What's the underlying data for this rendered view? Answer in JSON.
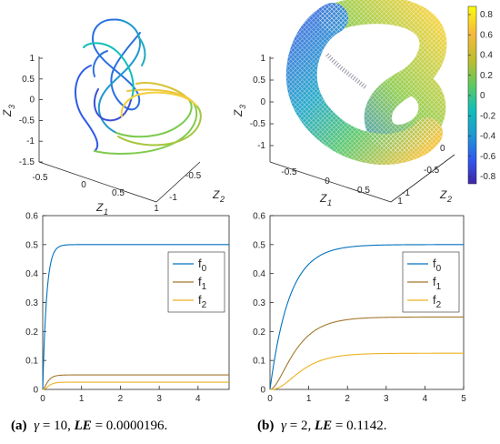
{
  "colors": {
    "f0": "#0072BD",
    "f1": "#A2782E",
    "f2": "#EDB120",
    "axis": "#262626",
    "colormap": [
      "#3E26A8",
      "#2F5AF0",
      "#1E9BD0",
      "#12BEB9",
      "#5CC963",
      "#BFBC2E",
      "#F8BA3D",
      "#F9FB0E"
    ]
  },
  "panels_3d": [
    {
      "id": "a-top",
      "xlabel": "Z",
      "xsub": "1",
      "ylabel": "Z",
      "ysub": "2",
      "zlabel": "Z",
      "zsub": "3",
      "zticks": [
        "1",
        "0.5",
        "0",
        "-0.5",
        "-1",
        "-1.5"
      ],
      "xticks": [
        "-0.5",
        "0",
        "0.5",
        "1"
      ],
      "yticks": [
        "-0.5",
        "-1"
      ]
    },
    {
      "id": "b-top",
      "xlabel": "Z",
      "xsub": "1",
      "ylabel": "Z",
      "ysub": "2",
      "zlabel": "Z",
      "zsub": "3",
      "zticks": [
        "1",
        "0.5",
        "0",
        "-0.5",
        "-1"
      ],
      "xticks": [
        "-0.5",
        "0",
        "0.5",
        "1"
      ],
      "yticks": [
        "0",
        "-0.5",
        "-1"
      ],
      "colorbar_ticks": [
        "0.8",
        "0.6",
        "0.4",
        "0.2",
        "0",
        "-0.2",
        "-0.4",
        "-0.6",
        "-0.8"
      ]
    }
  ],
  "chart_data": [
    {
      "type": "line",
      "id": "a-bottom",
      "xlim": [
        0,
        4.8
      ],
      "ylim": [
        0,
        0.6
      ],
      "xticks": [
        "0",
        "1",
        "2",
        "3",
        "4"
      ],
      "yticks": [
        "0",
        "0.1",
        "0.2",
        "0.3",
        "0.4",
        "0.5",
        "0.6"
      ],
      "legend_position": "right",
      "series": [
        {
          "name": "f",
          "sub": "0",
          "color": "f0",
          "plateau": 0.5,
          "rate": 10
        },
        {
          "name": "f",
          "sub": "1",
          "color": "f1",
          "plateau": 0.05,
          "rate": 10
        },
        {
          "name": "f",
          "sub": "2",
          "color": "f2",
          "plateau": 0.025,
          "rate": 10
        }
      ]
    },
    {
      "type": "line",
      "id": "b-bottom",
      "xlim": [
        0,
        5
      ],
      "ylim": [
        0,
        0.6
      ],
      "xticks": [
        "0",
        "1",
        "2",
        "3",
        "4",
        "5"
      ],
      "yticks": [
        "0",
        "0.1",
        "0.2",
        "0.3",
        "0.4",
        "0.5",
        "0.6"
      ],
      "legend_position": "right",
      "series": [
        {
          "name": "f",
          "sub": "0",
          "color": "f0",
          "plateau": 0.5,
          "rate": 2
        },
        {
          "name": "f",
          "sub": "1",
          "color": "f1",
          "plateau": 0.25,
          "rate": 2
        },
        {
          "name": "f",
          "sub": "2",
          "color": "f2",
          "plateau": 0.125,
          "rate": 2
        }
      ]
    }
  ],
  "captions": [
    {
      "label": "(a)",
      "greek": "γ",
      "eq1": " = 10, ",
      "le": "LE",
      "eq2": " = 0.0000196."
    },
    {
      "label": "(b)",
      "greek": "γ",
      "eq1": " = 2, ",
      "le": "LE",
      "eq2": " = 0.1142."
    }
  ]
}
